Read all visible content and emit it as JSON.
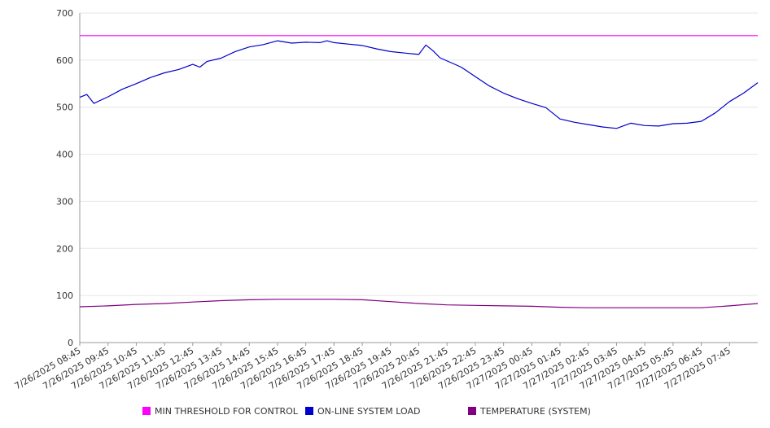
{
  "chart_data": {
    "type": "line",
    "title": "",
    "xlabel": "",
    "ylabel": "",
    "ylim": [
      0,
      700
    ],
    "yticks": [
      0,
      100,
      200,
      300,
      400,
      500,
      600,
      700
    ],
    "grid": true,
    "legend_position": "bottom",
    "x": [
      "7/26/2025 08:45",
      "7/26/2025 09:45",
      "7/26/2025 10:45",
      "7/26/2025 11:45",
      "7/26/2025 12:45",
      "7/26/2025 13:45",
      "7/26/2025 14:45",
      "7/26/2025 15:45",
      "7/26/2025 16:45",
      "7/26/2025 17:45",
      "7/26/2025 18:45",
      "7/26/2025 19:45",
      "7/26/2025 20:45",
      "7/26/2025 21:45",
      "7/26/2025 22:45",
      "7/26/2025 23:45",
      "7/27/2025 00:45",
      "7/27/2025 01:45",
      "7/27/2025 02:45",
      "7/27/2025 03:45",
      "7/27/2025 04:45",
      "7/27/2025 05:45",
      "7/27/2025 06:45",
      "7/27/2025 07:45"
    ],
    "x_end": "7/27/2025 08:45",
    "series": [
      {
        "name": "MIN THRESHOLD FOR CONTROL",
        "color": "#ff00ff",
        "x": [
          "7/26/2025 08:45",
          "7/27/2025 08:45"
        ],
        "values": [
          652,
          652
        ]
      },
      {
        "name": "ON-LINE SYSTEM LOAD",
        "color": "#0000cc",
        "x": [
          "7/26/2025 08:45",
          "7/26/2025 09:00",
          "7/26/2025 09:15",
          "7/26/2025 09:30",
          "7/26/2025 09:45",
          "7/26/2025 10:15",
          "7/26/2025 10:45",
          "7/26/2025 11:15",
          "7/26/2025 11:45",
          "7/26/2025 12:15",
          "7/26/2025 12:45",
          "7/26/2025 13:00",
          "7/26/2025 13:15",
          "7/26/2025 13:45",
          "7/26/2025 14:15",
          "7/26/2025 14:45",
          "7/26/2025 15:15",
          "7/26/2025 15:45",
          "7/26/2025 16:15",
          "7/26/2025 16:45",
          "7/26/2025 17:15",
          "7/26/2025 17:30",
          "7/26/2025 17:45",
          "7/26/2025 18:15",
          "7/26/2025 18:45",
          "7/26/2025 19:15",
          "7/26/2025 19:45",
          "7/26/2025 20:15",
          "7/26/2025 20:45",
          "7/26/2025 21:00",
          "7/26/2025 21:15",
          "7/26/2025 21:30",
          "7/26/2025 22:15",
          "7/26/2025 22:45",
          "7/26/2025 23:15",
          "7/26/2025 23:45",
          "7/27/2025 00:15",
          "7/27/2025 00:45",
          "7/27/2025 01:15",
          "7/27/2025 01:45",
          "7/27/2025 02:15",
          "7/27/2025 02:45",
          "7/27/2025 03:15",
          "7/27/2025 03:45",
          "7/27/2025 04:15",
          "7/27/2025 04:45",
          "7/27/2025 05:15",
          "7/27/2025 05:45",
          "7/27/2025 06:15",
          "7/27/2025 06:45",
          "7/27/2025 07:15",
          "7/27/2025 07:45",
          "7/27/2025 08:15",
          "7/27/2025 08:45"
        ],
        "values": [
          521,
          527,
          508,
          515,
          522,
          538,
          550,
          563,
          573,
          580,
          591,
          585,
          597,
          604,
          618,
          628,
          633,
          641,
          636,
          638,
          637,
          641,
          637,
          634,
          631,
          624,
          618,
          615,
          612,
          632,
          620,
          605,
          585,
          565,
          545,
          530,
          518,
          508,
          499,
          475,
          468,
          463,
          458,
          455,
          466,
          461,
          460,
          465,
          466,
          470,
          488,
          512,
          530,
          552
        ]
      },
      {
        "name": "TEMPERATURE (SYSTEM)",
        "color": "#800080",
        "x": [
          "7/26/2025 08:45",
          "7/26/2025 09:45",
          "7/26/2025 10:45",
          "7/26/2025 11:45",
          "7/26/2025 12:45",
          "7/26/2025 13:45",
          "7/26/2025 14:45",
          "7/26/2025 15:45",
          "7/26/2025 16:45",
          "7/26/2025 17:45",
          "7/26/2025 18:45",
          "7/26/2025 19:45",
          "7/26/2025 20:45",
          "7/26/2025 21:45",
          "7/26/2025 22:45",
          "7/26/2025 23:45",
          "7/27/2025 00:45",
          "7/27/2025 01:45",
          "7/27/2025 02:45",
          "7/27/2025 03:45",
          "7/27/2025 04:45",
          "7/27/2025 05:45",
          "7/27/2025 06:45",
          "7/27/2025 07:45",
          "7/27/2025 08:45"
        ],
        "values": [
          76,
          78,
          81,
          83,
          86,
          89,
          91,
          92,
          92,
          92,
          91,
          87,
          83,
          80,
          79,
          78,
          77,
          75,
          74,
          74,
          74,
          74,
          74,
          78,
          83
        ]
      }
    ]
  }
}
